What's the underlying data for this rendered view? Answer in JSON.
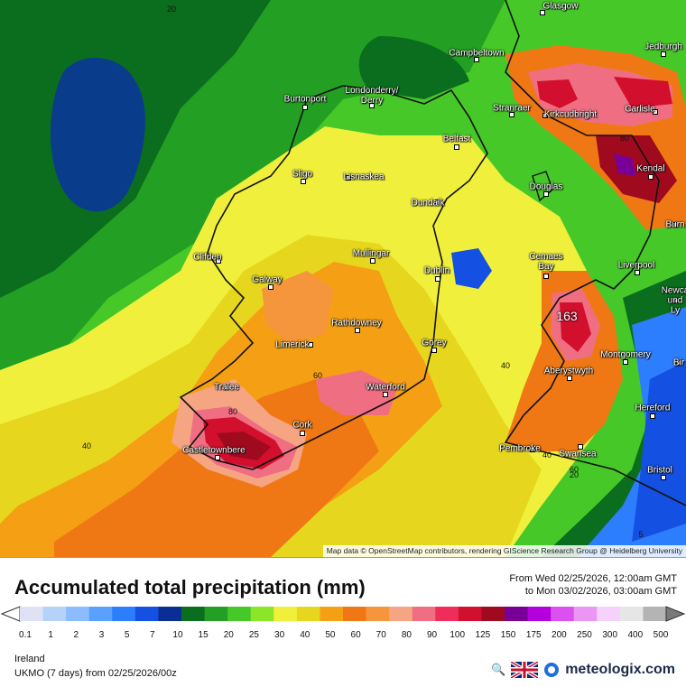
{
  "title": "Accumulated total precipitation (mm)",
  "period": {
    "from": "From Wed 02/25/2026, 12:00am GMT",
    "to": "to Mon 03/02/2026, 03:00am GMT"
  },
  "region": "Ireland",
  "model": "UKMO (7 days) from 02/25/2026/00z",
  "brand": "meteologix.com",
  "attribution": "Map data © OpenStreetMap contributors, rendering GIScience Research Group @ Heidelberg University",
  "max_marker": "163",
  "contour_labels": [
    "20",
    "40",
    "60",
    "80",
    "80",
    "40",
    "40",
    "60",
    "20",
    "5"
  ],
  "cities": [
    "Glasgow",
    "Jedburgh",
    "Campbeltown",
    "Londonderry/\nDerry",
    "Burtonport",
    "Stranraer",
    "Kirkcudbright",
    "Carlisle",
    "Belfast",
    "Kendal",
    "Sligo",
    "Lisnaskea",
    "Douglas",
    "Dundalk",
    "Burn",
    "Clifden",
    "Mullingar",
    "Cemaes\nBay",
    "Liverpool",
    "Dublin",
    "Galway",
    "Newca\nund\nLy",
    "Rathdowney",
    "Limerick",
    "Gorey",
    "Montgomery",
    "Bir",
    "Aberystwyth",
    "Tralee",
    "Waterford",
    "Hereford",
    "Cork",
    "Castletownbere",
    "Pembroke",
    "Swansea",
    "Bristol"
  ],
  "legend": {
    "ticks": [
      "0.1",
      "1",
      "2",
      "3",
      "5",
      "7",
      "10",
      "15",
      "20",
      "25",
      "30",
      "40",
      "50",
      "60",
      "70",
      "80",
      "90",
      "100",
      "125",
      "150",
      "175",
      "200",
      "250",
      "300",
      "400",
      "500"
    ],
    "colors": [
      "#e1e1f5",
      "#b4d2fa",
      "#8cbcff",
      "#5aa0ff",
      "#2d7dff",
      "#1450e1",
      "#0a2d96",
      "#0b6e1e",
      "#23a023",
      "#46c828",
      "#8ce628",
      "#f0f03c",
      "#e6d71e",
      "#f5a014",
      "#f07814",
      "#f5963c",
      "#f5a582",
      "#f06e82",
      "#f02d5a",
      "#d20f2d",
      "#a00a1e",
      "#780096",
      "#b400dc",
      "#dc50f0",
      "#eb96f5",
      "#f5d2fa",
      "#e6e6e6",
      "#b4b4b4"
    ]
  },
  "colors": {
    "sea_green": "#1e8c28",
    "deep_blue": "#0a3c8c"
  }
}
